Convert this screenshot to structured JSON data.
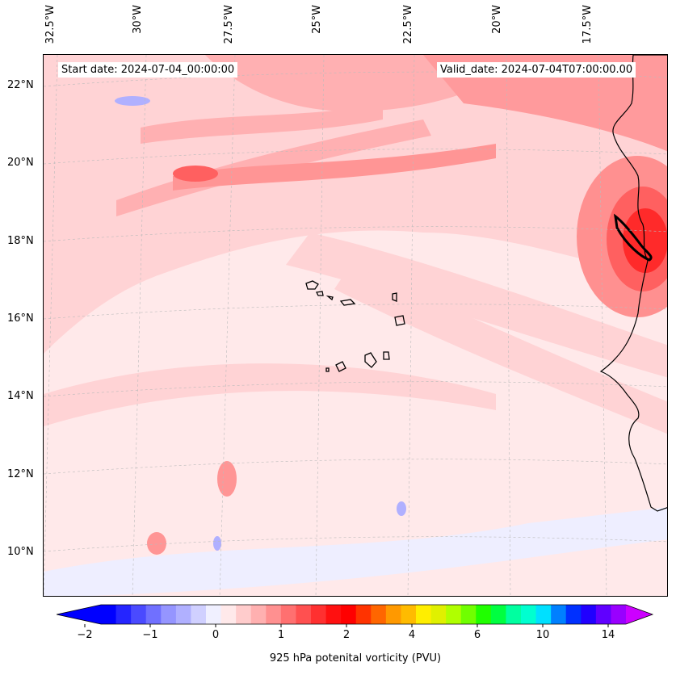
{
  "map": {
    "start_date": "Start date: 2024-07-04_00:00:00",
    "valid_date": "Valid_date: 2024-07-04T07:00:00.00",
    "lon_labels": [
      "32.5°W",
      "30°W",
      "27.5°W",
      "25°W",
      "22.5°W",
      "20°W",
      "17.5°W"
    ],
    "lat_labels": [
      "22°N",
      "20°N",
      "18°N",
      "16°N",
      "14°N",
      "12°N",
      "10°N"
    ],
    "ocean_color": "#ffe9ea",
    "coastline_color": "#000000"
  },
  "colorbar": {
    "label": "925 hPa potenital vorticity (PVU)",
    "ticks": [
      "−2",
      "−1",
      "0",
      "1",
      "2",
      "4",
      "6",
      "10",
      "14"
    ],
    "colors": [
      "#0000ff",
      "#2525ff",
      "#4a4aff",
      "#7070ff",
      "#9595ff",
      "#b0b0ff",
      "#d0d0ff",
      "#f0f0ff",
      "#ffe9ea",
      "#ffcccc",
      "#ffb0b0",
      "#ff9090",
      "#ff7070",
      "#ff5050",
      "#ff3030",
      "#ff1010",
      "#ff0000",
      "#ff3300",
      "#ff6600",
      "#ff9900",
      "#ffbb00",
      "#ffee00",
      "#e0f000",
      "#b0ff00",
      "#70ff00",
      "#20ff00",
      "#00ff40",
      "#00ffa0",
      "#00ffd0",
      "#00e0ff",
      "#0080ff",
      "#0030ff",
      "#2000ff",
      "#6000ff",
      "#9900ff"
    ],
    "extend_low_color": "#0000ff",
    "extend_high_color": "#cc00ff"
  }
}
